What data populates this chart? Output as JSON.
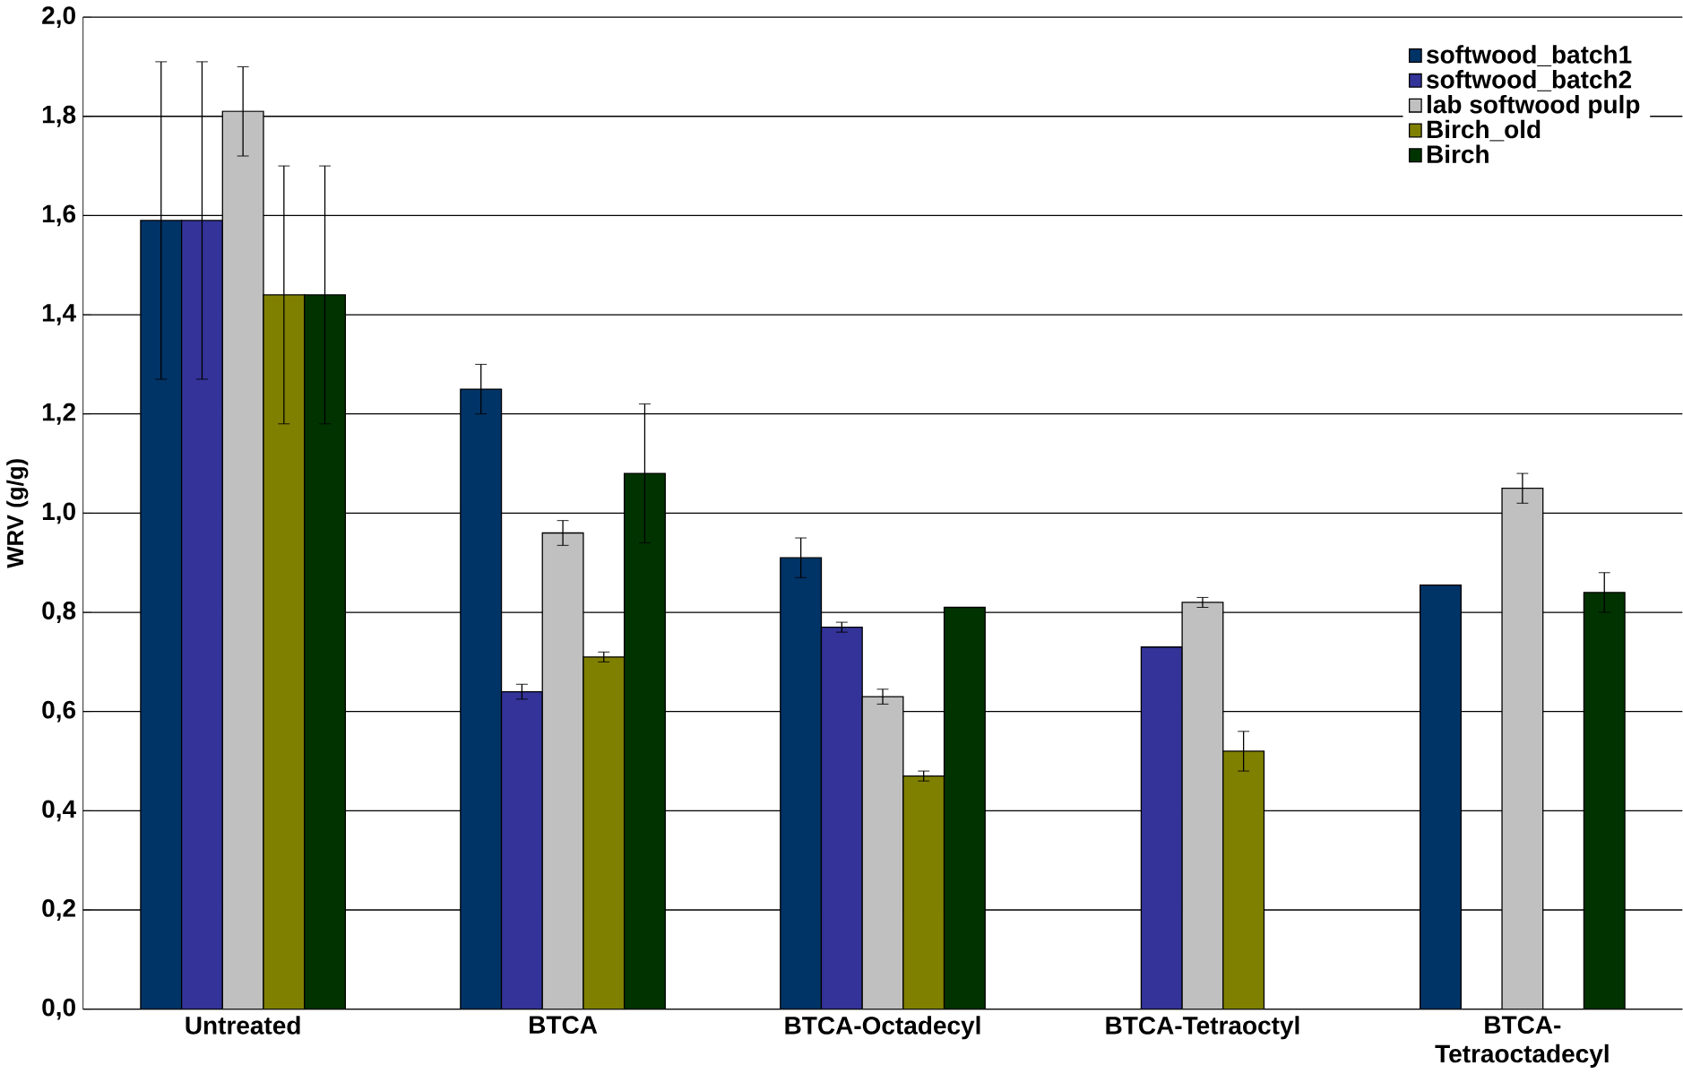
{
  "chart_data": {
    "type": "bar",
    "ylabel": "WRV (g/g)",
    "categories": [
      "Untreated",
      "BTCA",
      "BTCA-Octadecyl",
      "BTCA-Tetraoctyl",
      "BTCA-Tetraoctadecyl"
    ],
    "series": [
      {
        "name": "softwood_batch1",
        "color": "#003366",
        "values": [
          1.59,
          1.25,
          0.91,
          null,
          0.855
        ],
        "errors": [
          0.32,
          0.05,
          0.04,
          null,
          null
        ]
      },
      {
        "name": "softwood_batch2",
        "color": "#333399",
        "values": [
          1.59,
          0.64,
          0.77,
          0.73,
          null
        ],
        "errors": [
          0.32,
          0.015,
          0.01,
          null,
          null
        ]
      },
      {
        "name": "lab softwood pulp",
        "color": "#c0c0c0",
        "values": [
          1.81,
          0.96,
          0.63,
          0.82,
          1.05
        ],
        "errors": [
          0.09,
          0.025,
          0.015,
          0.01,
          0.03
        ]
      },
      {
        "name": "Birch_old",
        "color": "#808000",
        "values": [
          1.44,
          0.71,
          0.47,
          0.52,
          null
        ],
        "errors": [
          0.26,
          0.01,
          0.01,
          0.04,
          null
        ]
      },
      {
        "name": "Birch",
        "color": "#003300",
        "values": [
          1.44,
          1.08,
          0.81,
          null,
          0.84
        ],
        "errors": [
          0.26,
          0.14,
          null,
          null,
          0.04
        ]
      }
    ],
    "ylim": [
      0,
      2.0
    ],
    "yticks": [
      {
        "value": 0,
        "label": "0,0"
      },
      {
        "value": 0.2,
        "label": "0,2"
      },
      {
        "value": 0.4,
        "label": "0,4"
      },
      {
        "value": 0.6,
        "label": "0,6"
      },
      {
        "value": 0.8,
        "label": "0,8"
      },
      {
        "value": 1.0,
        "label": "1,0"
      },
      {
        "value": 1.2,
        "label": "1,2"
      },
      {
        "value": 1.4,
        "label": "1,4"
      },
      {
        "value": 1.6,
        "label": "1,6"
      },
      {
        "value": 1.8,
        "label": "1,8"
      },
      {
        "value": 2.0,
        "label": "2,0"
      }
    ],
    "grid": "y",
    "legend": "top right"
  }
}
